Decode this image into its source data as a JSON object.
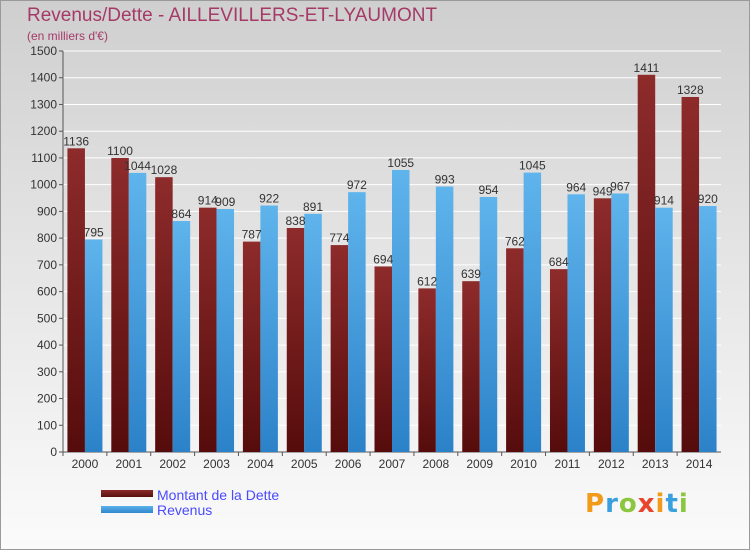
{
  "header": {
    "title": "Revenus/Dette - AILLEVILLERS-ET-LYAUMONT",
    "subtitle": "(en milliers d'€)"
  },
  "colors": {
    "title": "#a53a66",
    "dette": "#7a1e1e",
    "revenus": "#4aa3e3",
    "legend_text": "#4a4aff"
  },
  "chart_data": {
    "type": "bar",
    "categories": [
      "2000",
      "2001",
      "2002",
      "2003",
      "2004",
      "2005",
      "2006",
      "2007",
      "2008",
      "2009",
      "2010",
      "2011",
      "2012",
      "2013",
      "2014"
    ],
    "series": [
      {
        "name": "Montant de la Dette",
        "values": [
          1136,
          1100,
          1028,
          914,
          787,
          838,
          774,
          694,
          612,
          639,
          762,
          684,
          949,
          1411,
          1328
        ]
      },
      {
        "name": "Revenus",
        "values": [
          795,
          1044,
          864,
          909,
          922,
          891,
          972,
          1055,
          993,
          954,
          1045,
          964,
          967,
          914,
          920
        ]
      }
    ],
    "yticks": [
      0,
      100,
      200,
      300,
      400,
      500,
      600,
      700,
      800,
      900,
      1000,
      1100,
      1200,
      1300,
      1400,
      1500
    ],
    "ylim": [
      0,
      1500
    ],
    "grid": true,
    "legend_position": "bottom-left"
  },
  "legend": {
    "items": [
      {
        "label": "Montant de la Dette"
      },
      {
        "label": "Revenus"
      }
    ]
  },
  "logo": {
    "text": "Proxiti",
    "letters": [
      {
        "char": "P",
        "color": "#f29a1a"
      },
      {
        "char": "r",
        "color": "#3aa0dd"
      },
      {
        "char": "o",
        "color": "#8cc63e"
      },
      {
        "char": "x",
        "color": "#e8452c"
      },
      {
        "char": "i",
        "color": "#f29a1a"
      },
      {
        "char": "t",
        "color": "#3aa0dd"
      },
      {
        "char": "i",
        "color": "#8cc63e"
      }
    ]
  }
}
